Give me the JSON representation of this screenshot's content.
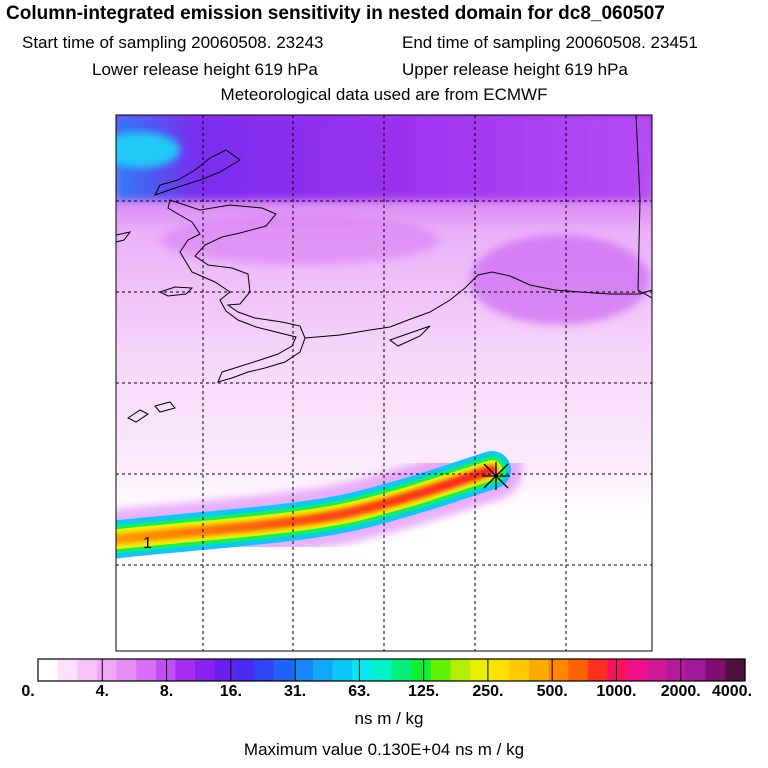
{
  "header": {
    "title": "Column-integrated emission sensitivity in nested domain for dc8_060507",
    "start_time": "Start time of sampling 20060508. 23243",
    "end_time": "End time of sampling 20060508. 23451",
    "lower_release": "Lower release height  619 hPa",
    "upper_release": "Upper release height  619 hPa",
    "met_data": "Meteorological data used are from ECMWF"
  },
  "chart_data": {
    "type": "heatmap",
    "title": "Column-integrated emission sensitivity in nested domain for dc8_060507",
    "colorbar": {
      "tick_labels": [
        "0.",
        "4.",
        "8.",
        "16.",
        "31.",
        "63.",
        "125.",
        "250.",
        "500.",
        "1000.",
        "2000.",
        "4000."
      ],
      "tick_values": [
        0,
        4,
        8,
        16,
        31,
        63,
        125,
        250,
        500,
        1000,
        2000,
        4000
      ],
      "units": "ns m / kg",
      "scale": "logarithmic",
      "colors": [
        "#ffffff",
        "#fde0fd",
        "#f7c4f9",
        "#f0a8f7",
        "#e58df6",
        "#d66ff5",
        "#c24ff3",
        "#a52ef1",
        "#8a22ef",
        "#6a1ef0",
        "#4a2af2",
        "#2f44f4",
        "#1e64f6",
        "#1586f7",
        "#10a8f8",
        "#0cc8f8",
        "#05e8f0",
        "#00f2c8",
        "#00f07a",
        "#10f030",
        "#60f000",
        "#b0f000",
        "#e8f000",
        "#ffe000",
        "#ffc800",
        "#ffaa00",
        "#ff8800",
        "#ff6000",
        "#ff3020",
        "#ff1060",
        "#f0108c",
        "#d01898",
        "#b8189c",
        "#a0189c",
        "#801070",
        "#501040"
      ]
    },
    "grid": true,
    "release_marker": "star",
    "plume_label": "1",
    "max_value": 1300,
    "max_value_label": "Maximum value  0.130E+04 ns m / kg"
  }
}
